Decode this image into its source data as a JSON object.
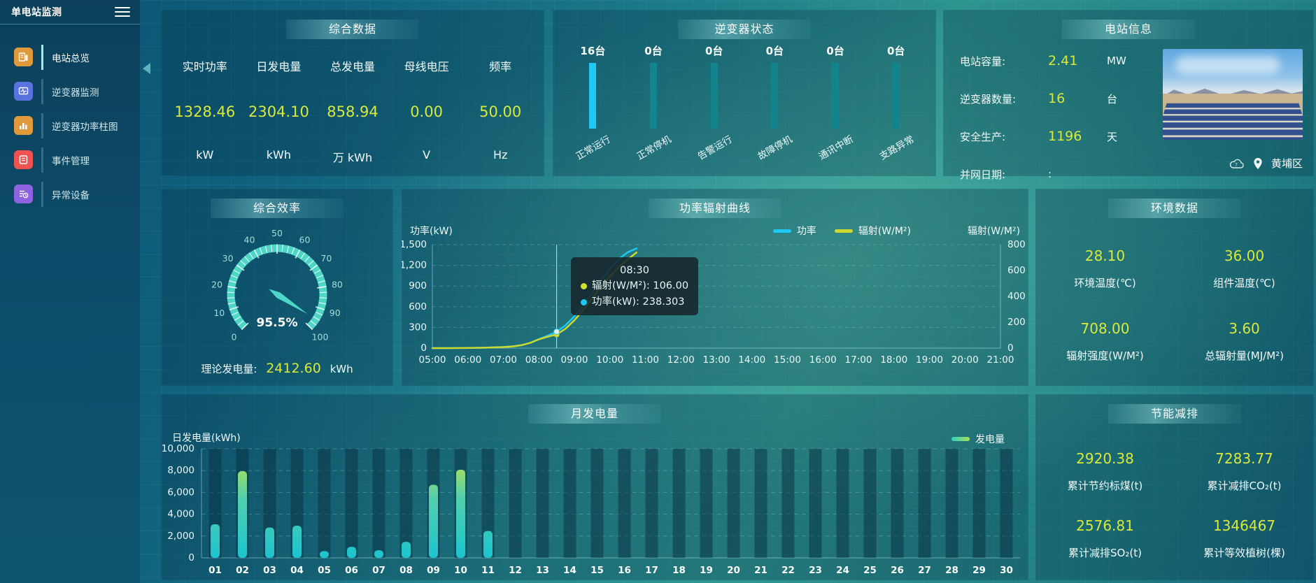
{
  "app": {
    "title": "单电站监测"
  },
  "colors": {
    "accent_value": "#d9e93b",
    "power_line": "#1ec9f5",
    "radiation_line": "#ccd830",
    "inverter_bar_active": "#1fc9f4",
    "inverter_bar_idle": "#11848d",
    "gauge": "#4ed7c6",
    "crosshair": "#e8f4f6"
  },
  "sidebar": {
    "items": [
      {
        "label": "电站总览",
        "icon": "station-overview-icon",
        "color": "#e09a3c",
        "active": true
      },
      {
        "label": "逆变器监测",
        "icon": "inverter-monitor-icon",
        "color": "#5873de",
        "active": false
      },
      {
        "label": "逆变器功率柱图",
        "icon": "inverter-power-bars-icon",
        "color": "#e09a3c",
        "active": false
      },
      {
        "label": "事件管理",
        "icon": "event-management-icon",
        "color": "#ef5350",
        "active": false
      },
      {
        "label": "异常设备",
        "icon": "abnormal-device-icon",
        "color": "#8f62e0",
        "active": false
      }
    ]
  },
  "summary": {
    "title": "综合数据",
    "stats": [
      {
        "label": "实时功率",
        "value": "1328.46",
        "unit": "kW"
      },
      {
        "label": "日发电量",
        "value": "2304.10",
        "unit": "kWh"
      },
      {
        "label": "总发电量",
        "value": "858.94",
        "unit": "万 kWh"
      },
      {
        "label": "母线电压",
        "value": "0.00",
        "unit": "V"
      },
      {
        "label": "频率",
        "value": "50.00",
        "unit": "Hz"
      }
    ]
  },
  "station_info": {
    "title": "电站信息",
    "rows": [
      {
        "label": "电站容量:",
        "value": "2.41",
        "unit": "MW"
      },
      {
        "label": "逆变器数量:",
        "value": "16",
        "unit": "台"
      },
      {
        "label": "安全生产:",
        "value": "1196",
        "unit": "天"
      },
      {
        "label": "并网日期:",
        "value": ":",
        "unit": ""
      }
    ],
    "location": "黄埔区"
  },
  "efficiency": {
    "theory_label": "理论发电量:",
    "theory_value": "2412.60",
    "theory_unit": "kWh"
  },
  "power_curve": {
    "tooltip": {
      "time": "08:30",
      "rows": [
        {
          "text": "辐射(W/M²): 106.00",
          "color": "#d4e030"
        },
        {
          "text": "功率(kW): 238.303",
          "color": "#1ec9f5"
        }
      ]
    }
  },
  "environment": {
    "title": "环境数据",
    "stats": [
      {
        "value": "28.10",
        "label": "环境温度(℃)"
      },
      {
        "value": "36.00",
        "label": "组件温度(℃)"
      },
      {
        "value": "708.00",
        "label": "辐射强度(W/M²)"
      },
      {
        "value": "3.60",
        "label": "总辐射量(MJ/M²)"
      }
    ]
  },
  "saving": {
    "title": "节能减排",
    "stats": [
      {
        "value": "2920.38",
        "label": "累计节约标煤(t)"
      },
      {
        "value": "7283.77",
        "label": "累计减排CO₂(t)"
      },
      {
        "value": "2576.81",
        "label": "累计减排SO₂(t)"
      },
      {
        "value": "1346467",
        "label": "累计等效植树(棵)"
      }
    ]
  },
  "chart_data": [
    {
      "type": "gauge",
      "title": "综合效率",
      "value": 95.5,
      "min": 0,
      "max": 100,
      "label": "95.5%",
      "tick_labels": [
        0,
        10,
        20,
        30,
        40,
        50,
        60,
        70,
        80,
        90,
        100
      ]
    },
    {
      "type": "line",
      "title": "功率辐射曲线",
      "left_axis": {
        "label": "功率(kW)",
        "min": 0,
        "max": 1500,
        "ticks": [
          "0",
          "300",
          "600",
          "900",
          "1,200",
          "1,500"
        ]
      },
      "right_axis": {
        "label": "辐射(W/M²)",
        "min": 0,
        "max": 800,
        "ticks": [
          "0",
          "200",
          "400",
          "600",
          "800"
        ]
      },
      "x_labels": [
        "05:00",
        "06:00",
        "07:00",
        "08:00",
        "09:00",
        "10:00",
        "11:00",
        "12:00",
        "13:00",
        "14:00",
        "15:00",
        "16:00",
        "17:00",
        "18:00",
        "19:00",
        "20:00",
        "21:00"
      ],
      "x_range": [
        5,
        21
      ],
      "series": [
        {
          "name": "功率",
          "axis": "left",
          "color": "#1ec9f5",
          "t": [
            5,
            5.5,
            6,
            6.5,
            7,
            7.25,
            7.5,
            7.75,
            8,
            8.25,
            8.5,
            8.75,
            9,
            9.25,
            9.5,
            9.75,
            10,
            10.25,
            10.5,
            10.75
          ],
          "values": [
            0,
            0,
            2,
            6,
            15,
            25,
            42,
            75,
            130,
            180,
            238.3,
            330,
            460,
            620,
            800,
            980,
            1150,
            1290,
            1390,
            1445
          ]
        },
        {
          "name": "辐射(W/M²)",
          "axis": "right",
          "color": "#ccd830",
          "t": [
            5,
            5.5,
            6,
            6.5,
            7,
            7.25,
            7.5,
            7.75,
            8,
            8.25,
            8.5,
            8.75,
            9,
            9.25,
            9.5,
            9.75,
            10,
            10.25,
            10.5,
            10.75
          ],
          "values": [
            0,
            0,
            1,
            3,
            8,
            13,
            22,
            40,
            68,
            88,
            106,
            150,
            215,
            295,
            385,
            475,
            555,
            625,
            685,
            740
          ]
        }
      ],
      "crosshair": {
        "t": 8.5,
        "power": 238.303,
        "radiation": 106.0
      },
      "legend_position": "top-right",
      "grid": "dashed-horizontal"
    },
    {
      "type": "bar",
      "title": "月发电量",
      "ylabel": "日发电量(kWh)",
      "ylim": [
        0,
        10000
      ],
      "yticks": [
        "0",
        "2,000",
        "4,000",
        "6,000",
        "8,000",
        "10,000"
      ],
      "legend": "发电量",
      "categories": [
        "01",
        "02",
        "03",
        "04",
        "05",
        "06",
        "07",
        "08",
        "09",
        "10",
        "11",
        "12",
        "13",
        "14",
        "15",
        "16",
        "17",
        "18",
        "19",
        "20",
        "21",
        "22",
        "23",
        "24",
        "25",
        "26",
        "27",
        "28",
        "29",
        "30"
      ],
      "values": [
        3080,
        7950,
        2780,
        2950,
        620,
        1010,
        700,
        1470,
        6700,
        8080,
        2460,
        0,
        0,
        0,
        0,
        0,
        0,
        0,
        0,
        0,
        0,
        0,
        0,
        0,
        0,
        0,
        0,
        0,
        0,
        0
      ],
      "bar_gradient": [
        "#cfe838",
        "#52cfae",
        "#1cc4cf"
      ]
    },
    {
      "type": "bar",
      "title": "逆变器状态",
      "unit": "台",
      "categories": [
        "正常运行",
        "正常停机",
        "告警运行",
        "故障停机",
        "通讯中断",
        "支路异常"
      ],
      "values": [
        16,
        0,
        0,
        0,
        0,
        0
      ]
    }
  ]
}
